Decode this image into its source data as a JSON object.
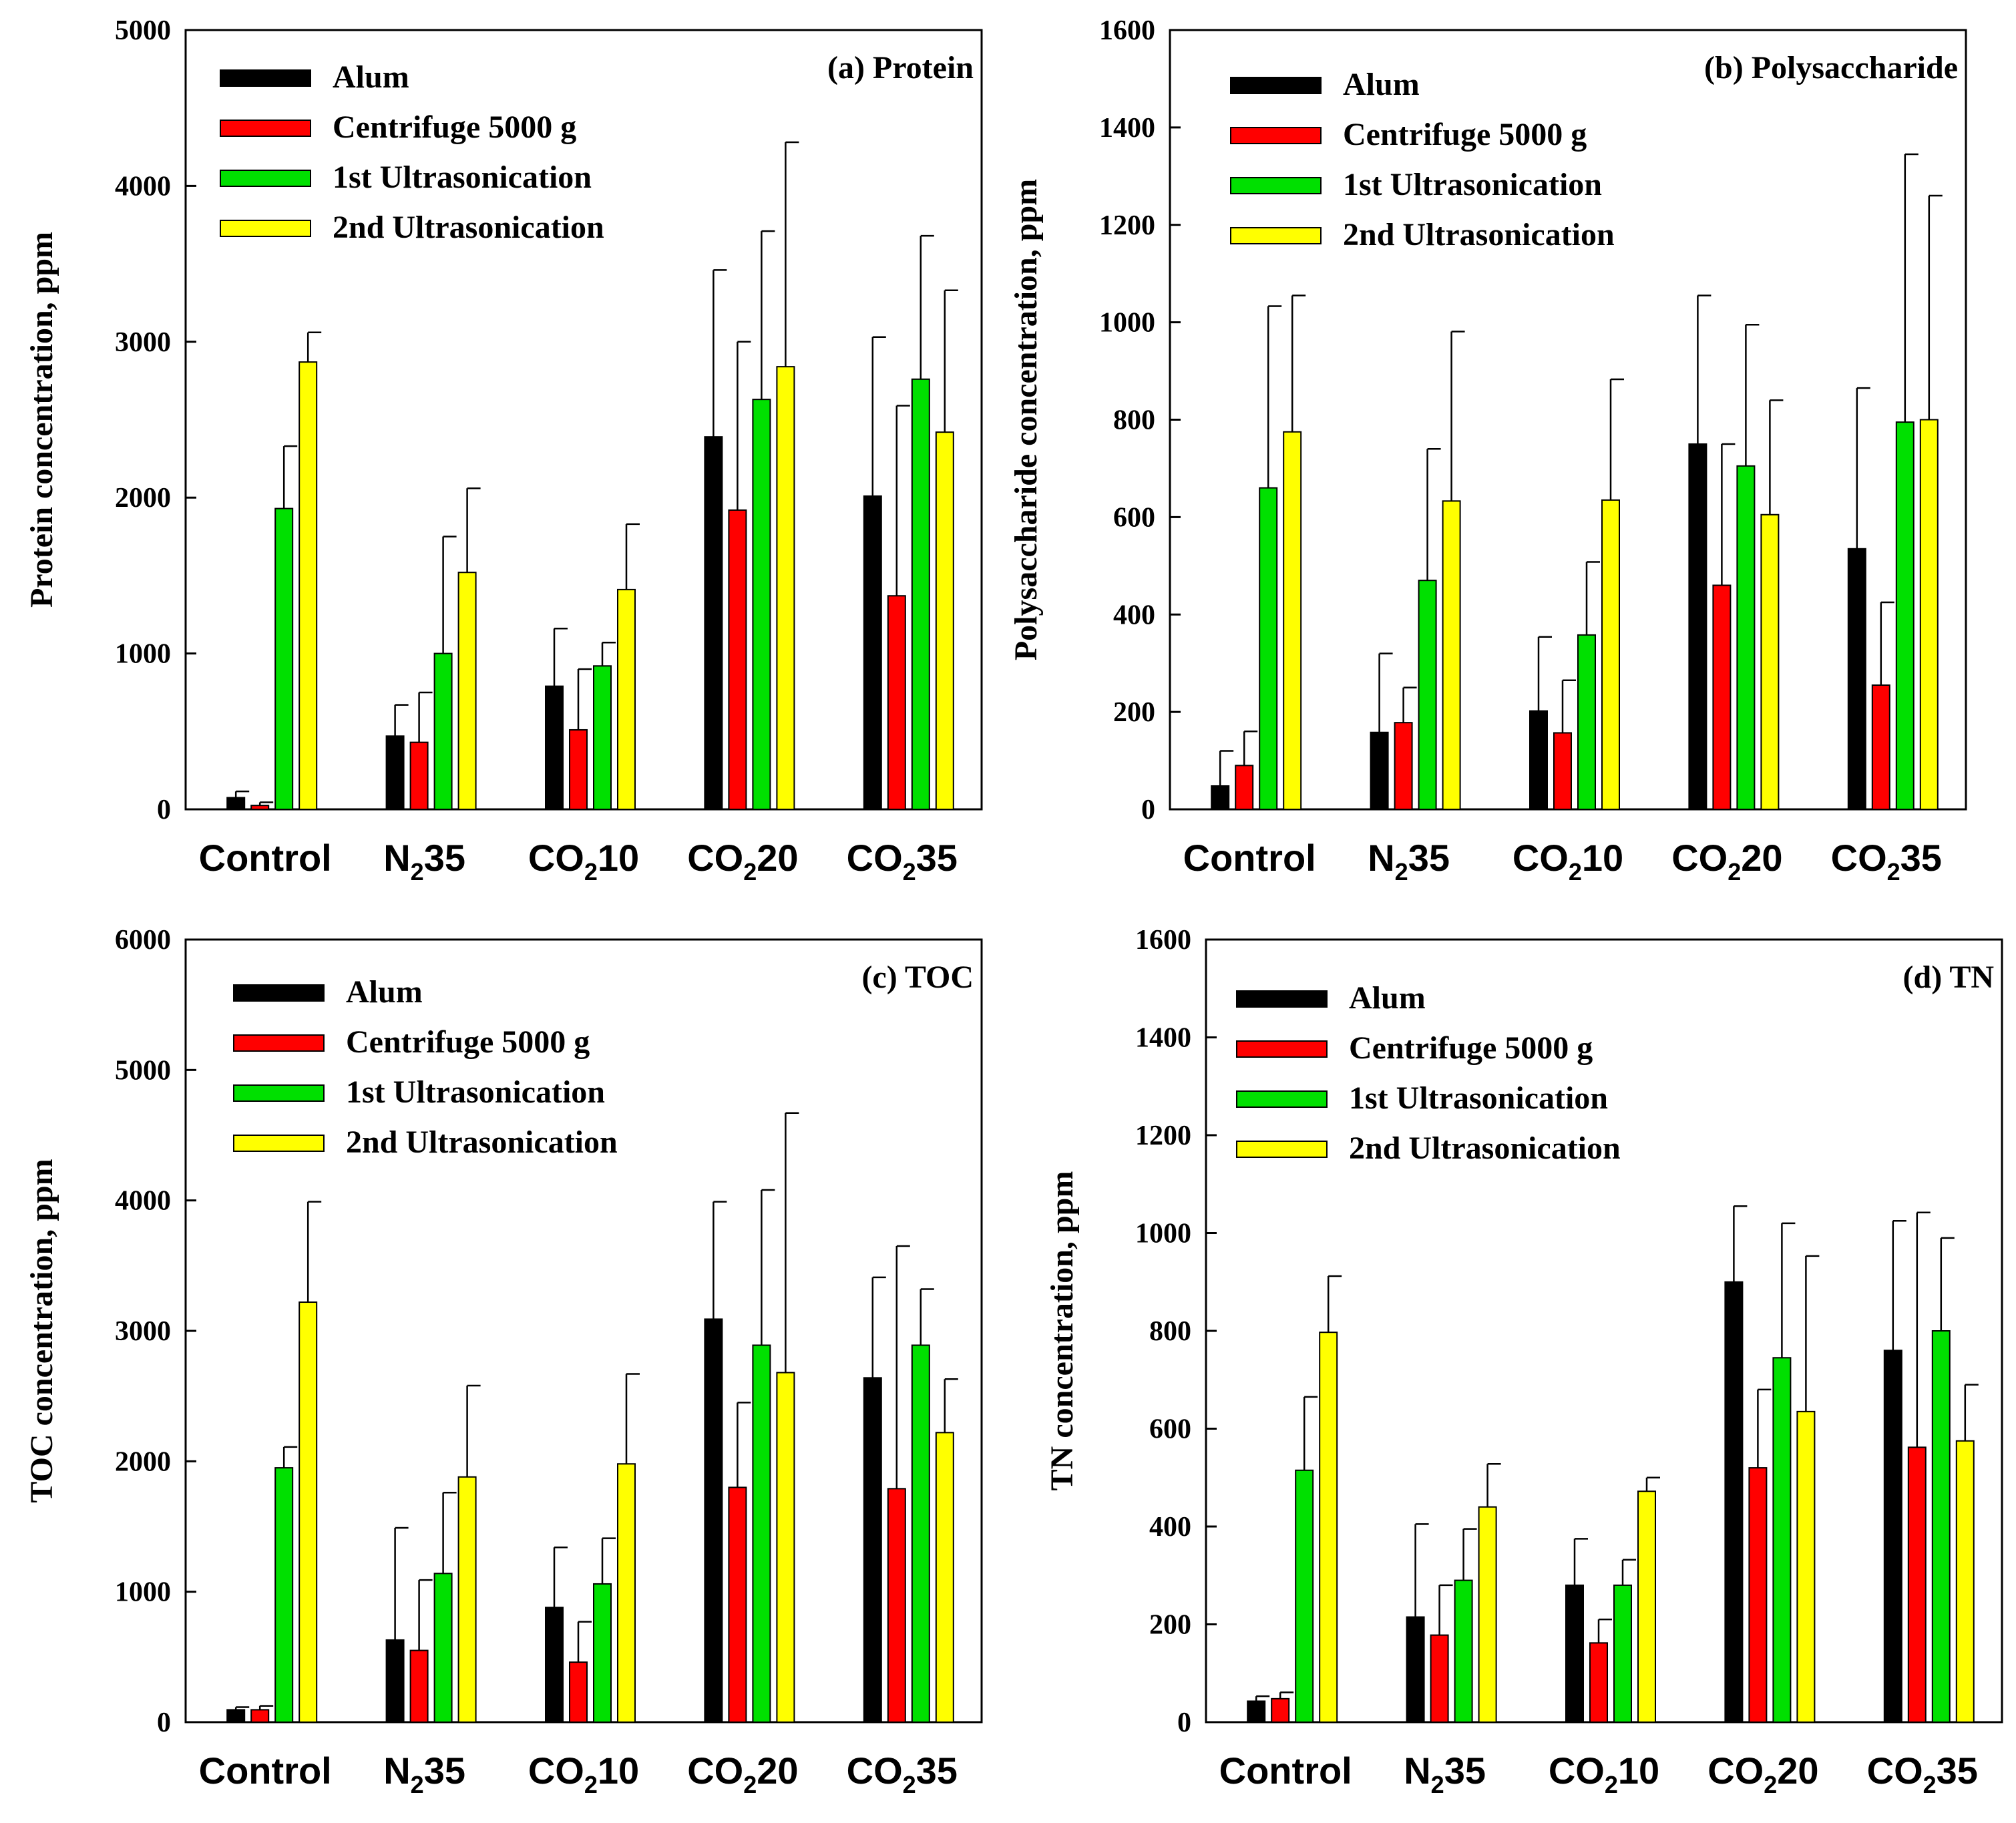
{
  "chart_data": [
    {
      "type": "bar",
      "title": "(a) Protein",
      "ylabel": "Protein concentration, ppm",
      "xlabel": "",
      "ylim": [
        0,
        5000
      ],
      "yticks": [
        0,
        1000,
        2000,
        3000,
        4000,
        5000
      ],
      "categories": [
        {
          "base": "Control",
          "sub": "",
          "tail": ""
        },
        {
          "base": "N",
          "sub": "2",
          "tail": "35"
        },
        {
          "base": "CO",
          "sub": "2",
          "tail": "10"
        },
        {
          "base": "CO",
          "sub": "2",
          "tail": "20"
        },
        {
          "base": "CO",
          "sub": "2",
          "tail": "35"
        }
      ],
      "legend_position": "top-left",
      "series": [
        {
          "name": "Alum",
          "color": "#000000",
          "values": [
            75,
            470,
            790,
            2390,
            2010
          ],
          "errors": [
            40,
            200,
            370,
            1070,
            1020
          ]
        },
        {
          "name": "Centrifuge 5000 g",
          "color": "#ff0000",
          "values": [
            25,
            430,
            510,
            1920,
            1370
          ],
          "errors": [
            20,
            320,
            390,
            1080,
            1220
          ]
        },
        {
          "name": "1st Ultrasonication",
          "color": "#00e000",
          "values": [
            1930,
            1000,
            920,
            2630,
            2760
          ],
          "errors": [
            400,
            750,
            150,
            1080,
            920
          ]
        },
        {
          "name": "2nd Ultrasonication",
          "color": "#ffff00",
          "values": [
            2870,
            1520,
            1410,
            2840,
            2420
          ],
          "errors": [
            190,
            540,
            420,
            1440,
            910
          ]
        }
      ]
    },
    {
      "type": "bar",
      "title": "(b) Polysaccharide",
      "ylabel": "Polysaccharide concentration, ppm",
      "xlabel": "",
      "ylim": [
        0,
        1600
      ],
      "yticks": [
        0,
        200,
        400,
        600,
        800,
        1000,
        1200,
        1400,
        1600
      ],
      "categories": [
        {
          "base": "Control",
          "sub": "",
          "tail": ""
        },
        {
          "base": "N",
          "sub": "2",
          "tail": "35"
        },
        {
          "base": "CO",
          "sub": "2",
          "tail": "10"
        },
        {
          "base": "CO",
          "sub": "2",
          "tail": "20"
        },
        {
          "base": "CO",
          "sub": "2",
          "tail": "35"
        }
      ],
      "legend_position": "top-left",
      "series": [
        {
          "name": "Alum",
          "color": "#000000",
          "values": [
            48,
            158,
            202,
            750,
            535
          ],
          "errors": [
            72,
            162,
            152,
            305,
            330
          ]
        },
        {
          "name": "Centrifuge 5000 g",
          "color": "#ff0000",
          "values": [
            90,
            178,
            157,
            460,
            255
          ],
          "errors": [
            70,
            72,
            108,
            290,
            170
          ]
        },
        {
          "name": "1st Ultrasonication",
          "color": "#00e000",
          "values": [
            660,
            470,
            358,
            705,
            795
          ],
          "errors": [
            373,
            270,
            150,
            290,
            550
          ]
        },
        {
          "name": "2nd Ultrasonication",
          "color": "#ffff00",
          "values": [
            775,
            633,
            635,
            605,
            800
          ],
          "errors": [
            280,
            348,
            248,
            235,
            460
          ]
        }
      ]
    },
    {
      "type": "bar",
      "title": "(c) TOC",
      "ylabel": "TOC concentration, ppm",
      "xlabel": "",
      "ylim": [
        0,
        6000
      ],
      "yticks": [
        0,
        1000,
        2000,
        3000,
        4000,
        5000,
        6000
      ],
      "categories": [
        {
          "base": "Control",
          "sub": "",
          "tail": ""
        },
        {
          "base": "N",
          "sub": "2",
          "tail": "35"
        },
        {
          "base": "CO",
          "sub": "2",
          "tail": "10"
        },
        {
          "base": "CO",
          "sub": "2",
          "tail": "20"
        },
        {
          "base": "CO",
          "sub": "2",
          "tail": "35"
        }
      ],
      "legend_position": "top-left",
      "series": [
        {
          "name": "Alum",
          "color": "#000000",
          "values": [
            95,
            630,
            880,
            3090,
            2640
          ],
          "errors": [
            20,
            860,
            460,
            900,
            770
          ]
        },
        {
          "name": "Centrifuge 5000 g",
          "color": "#ff0000",
          "values": [
            95,
            550,
            460,
            1800,
            1790
          ],
          "errors": [
            30,
            540,
            310,
            650,
            1860
          ]
        },
        {
          "name": "1st Ultrasonication",
          "color": "#00e000",
          "values": [
            1950,
            1140,
            1060,
            2890,
            2890
          ],
          "errors": [
            160,
            620,
            350,
            1190,
            430
          ]
        },
        {
          "name": "2nd Ultrasonication",
          "color": "#ffff00",
          "values": [
            3220,
            1880,
            1980,
            2680,
            2220
          ],
          "errors": [
            770,
            700,
            690,
            1990,
            410
          ]
        }
      ]
    },
    {
      "type": "bar",
      "title": "(d) TN",
      "ylabel": "TN concentration, ppm",
      "xlabel": "",
      "ylim": [
        0,
        1600
      ],
      "yticks": [
        0,
        200,
        400,
        600,
        800,
        1000,
        1200,
        1400,
        1600
      ],
      "categories": [
        {
          "base": "Control",
          "sub": "",
          "tail": ""
        },
        {
          "base": "N",
          "sub": "2",
          "tail": "35"
        },
        {
          "base": "CO",
          "sub": "2",
          "tail": "10"
        },
        {
          "base": "CO",
          "sub": "2",
          "tail": "20"
        },
        {
          "base": "CO",
          "sub": "2",
          "tail": "35"
        }
      ],
      "legend_position": "top-left",
      "series": [
        {
          "name": "Alum",
          "color": "#000000",
          "values": [
            43,
            215,
            280,
            900,
            760
          ],
          "errors": [
            10,
            190,
            95,
            155,
            265
          ]
        },
        {
          "name": "Centrifuge 5000 g",
          "color": "#ff0000",
          "values": [
            48,
            178,
            162,
            520,
            562
          ],
          "errors": [
            13,
            102,
            48,
            160,
            480
          ]
        },
        {
          "name": "1st Ultrasonication",
          "color": "#00e000",
          "values": [
            515,
            290,
            280,
            745,
            800
          ],
          "errors": [
            150,
            105,
            52,
            275,
            190
          ]
        },
        {
          "name": "2nd Ultrasonication",
          "color": "#ffff00",
          "values": [
            797,
            440,
            472,
            635,
            575
          ],
          "errors": [
            115,
            88,
            28,
            318,
            115
          ]
        }
      ]
    }
  ]
}
